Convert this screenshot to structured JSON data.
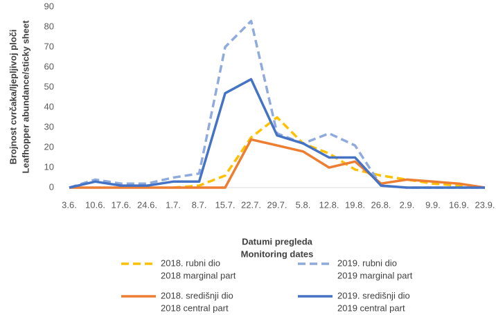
{
  "chart_data": {
    "type": "line",
    "y_label": [
      "Brojnost cvrčaka/ljepljivoj ploči",
      "Leafhopper abundance/sticky sheet"
    ],
    "x_label": [
      "Datumi pregleda",
      "Monitoring dates"
    ],
    "categories": [
      "3.6.",
      "10.6.",
      "17.6.",
      "24.6.",
      "1.7.",
      "8.7.",
      "15.7.",
      "22.7.",
      "29.7.",
      "5.8.",
      "12.8.",
      "19.8.",
      "26.8.",
      "2.9.",
      "9.9.",
      "16.9.",
      "23.9."
    ],
    "series": [
      {
        "name": [
          "2018. rubni dio",
          "2018 marginal part"
        ],
        "color": "#ffc000",
        "dashed": true,
        "values": [
          null,
          null,
          null,
          null,
          0,
          1,
          6,
          25,
          35,
          22,
          17,
          9,
          6,
          4,
          2,
          1,
          0
        ]
      },
      {
        "name": [
          "2019. rubni dio",
          "2019 marginal part"
        ],
        "color": "#8faadc",
        "dashed": true,
        "values": [
          0,
          4,
          2,
          2,
          5,
          7,
          70,
          83,
          27,
          22,
          27,
          21,
          1,
          0,
          0,
          0,
          0
        ]
      },
      {
        "name": [
          "2018. središnji dio",
          "2018 central part"
        ],
        "color": "#ed7d31",
        "dashed": false,
        "values": [
          0,
          0,
          0,
          0,
          0,
          0,
          0,
          24,
          21,
          18,
          10,
          13,
          2,
          4,
          3,
          2,
          0
        ]
      },
      {
        "name": [
          "2019. središnji dio",
          "2019 central part"
        ],
        "color": "#4472c4",
        "dashed": false,
        "values": [
          0,
          3,
          1,
          1,
          3,
          3,
          47,
          54,
          26,
          22,
          15,
          15,
          1,
          0,
          0,
          0,
          0
        ]
      }
    ],
    "ylim": [
      0,
      90
    ],
    "yticks": [
      0,
      10,
      20,
      30,
      40,
      50,
      60,
      70,
      80,
      90
    ],
    "grid": false
  }
}
